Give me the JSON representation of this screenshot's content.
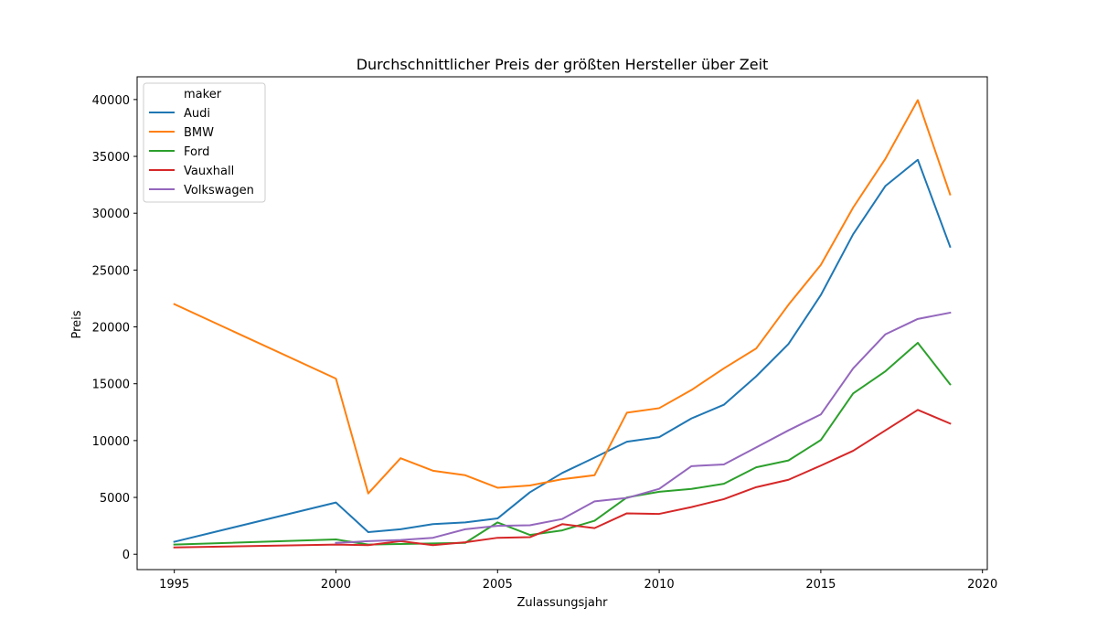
{
  "chart_data": {
    "type": "line",
    "title": "Durchschnittlicher Preis der größten Hersteller über Zeit",
    "xlabel": "Zulassungsjahr",
    "ylabel": "Preis",
    "xlim": [
      1993.85,
      2020.15
    ],
    "ylim": [
      -1350,
      42000
    ],
    "x_ticks": [
      1995,
      2000,
      2005,
      2010,
      2015,
      2020
    ],
    "y_ticks": [
      0,
      5000,
      10000,
      15000,
      20000,
      25000,
      30000,
      35000,
      40000
    ],
    "grid": false,
    "legend": {
      "title": "maker",
      "placement": "top-left"
    },
    "series": [
      {
        "name": "Audi",
        "color": "#1f77b4",
        "x": [
          1995,
          2000,
          2001,
          2002,
          2003,
          2004,
          2005,
          2006,
          2007,
          2008,
          2009,
          2010,
          2011,
          2012,
          2013,
          2014,
          2015,
          2016,
          2017,
          2018,
          2019
        ],
        "y": [
          1100,
          4550,
          1950,
          2200,
          2650,
          2800,
          3150,
          5450,
          7150,
          8500,
          9900,
          10300,
          11950,
          13150,
          15650,
          18500,
          22800,
          28150,
          32400,
          34700,
          27050
        ]
      },
      {
        "name": "BMW",
        "color": "#ff7f0e",
        "x": [
          1995,
          2000,
          2001,
          2002,
          2003,
          2004,
          2005,
          2006,
          2007,
          2008,
          2009,
          2010,
          2011,
          2012,
          2013,
          2014,
          2015,
          2016,
          2017,
          2018,
          2019
        ],
        "y": [
          22000,
          15450,
          5350,
          8450,
          7350,
          6950,
          5850,
          6050,
          6600,
          6950,
          12450,
          12850,
          14450,
          16350,
          18100,
          21950,
          25450,
          30500,
          34800,
          39950,
          31650
        ]
      },
      {
        "name": "Ford",
        "color": "#2ca02c",
        "x": [
          1995,
          2000,
          2001,
          2002,
          2003,
          2004,
          2005,
          2006,
          2007,
          2008,
          2009,
          2010,
          2011,
          2012,
          2013,
          2014,
          2015,
          2016,
          2017,
          2018,
          2019
        ],
        "y": [
          850,
          1300,
          850,
          900,
          950,
          1000,
          2800,
          1700,
          2100,
          2950,
          5000,
          5500,
          5750,
          6200,
          7650,
          8250,
          10050,
          14150,
          16100,
          18600,
          14950
        ]
      },
      {
        "name": "Vauxhall",
        "color": "#d62728",
        "x": [
          1995,
          2000,
          2001,
          2002,
          2003,
          2004,
          2005,
          2006,
          2007,
          2008,
          2009,
          2010,
          2011,
          2012,
          2013,
          2014,
          2015,
          2016,
          2017,
          2018,
          2019
        ],
        "y": [
          600,
          850,
          800,
          1150,
          800,
          1050,
          1450,
          1500,
          2650,
          2300,
          3600,
          3550,
          4150,
          4850,
          5900,
          6550,
          7800,
          9100,
          10900,
          12700,
          11500
        ]
      },
      {
        "name": "Volkswagen",
        "color": "#9467bd",
        "x": [
          2000,
          2001,
          2002,
          2003,
          2004,
          2005,
          2006,
          2007,
          2008,
          2009,
          2010,
          2011,
          2012,
          2013,
          2014,
          2015,
          2016,
          2017,
          2018,
          2019
        ],
        "y": [
          1000,
          1150,
          1250,
          1450,
          2200,
          2500,
          2550,
          3100,
          4650,
          4950,
          5750,
          7750,
          7900,
          9400,
          10900,
          12300,
          16350,
          19350,
          20700,
          21250
        ]
      }
    ]
  }
}
